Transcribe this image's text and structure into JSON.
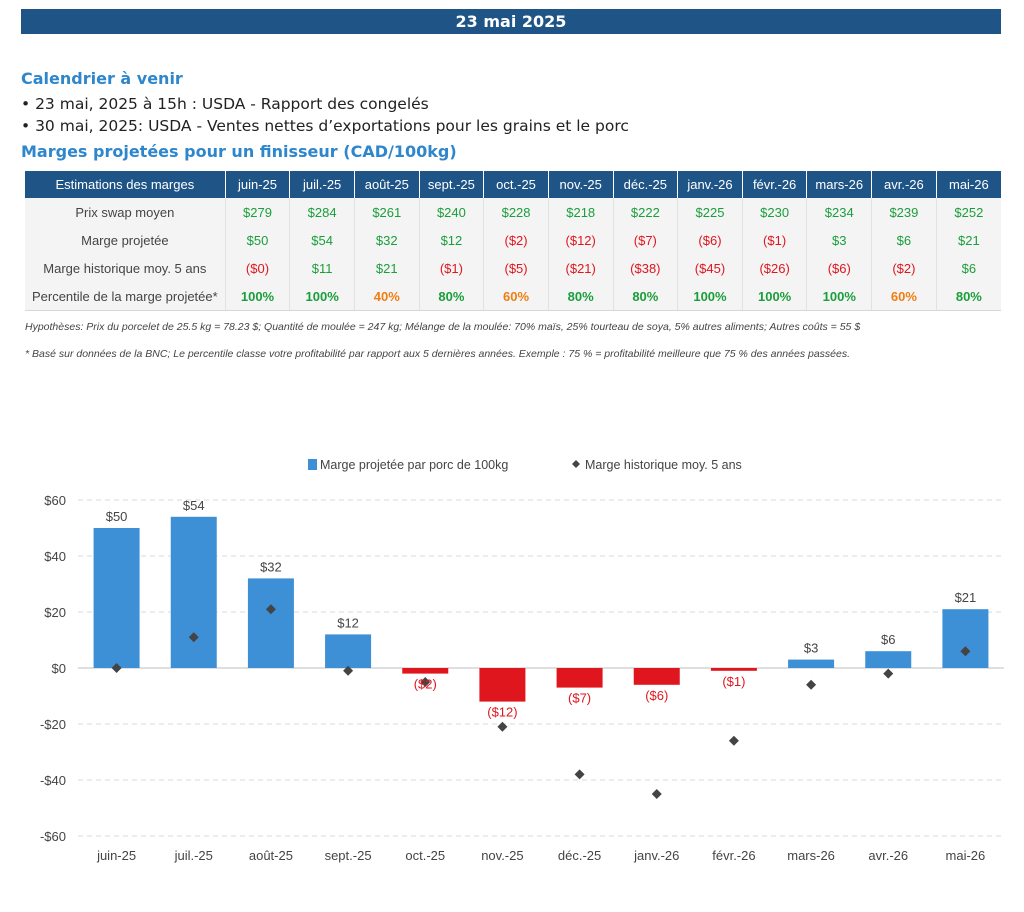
{
  "header": {
    "date": "23 mai 2025"
  },
  "calendar": {
    "title": "Calendrier à venir",
    "items": [
      "• 23 mai, 2025 à 15h : USDA - Rapport des congelés",
      "• 30 mai, 2025: USDA - Ventes nettes d’exportations pour les grains et le porc"
    ]
  },
  "margins_section": {
    "title": "Marges projetées pour un finisseur (CAD/100kg)"
  },
  "table": {
    "corner": "Estimations des marges",
    "months": [
      "juin-25",
      "juil.-25",
      "août-25",
      "sept.-25",
      "oct.-25",
      "nov.-25",
      "déc.-25",
      "janv.-26",
      "févr.-26",
      "mars-26",
      "avr.-26",
      "mai-26"
    ],
    "rows": [
      {
        "label": "Prix swap moyen",
        "cells": [
          {
            "v": "$279",
            "c": "pos"
          },
          {
            "v": "$284",
            "c": "pos"
          },
          {
            "v": "$261",
            "c": "pos"
          },
          {
            "v": "$240",
            "c": "pos"
          },
          {
            "v": "$228",
            "c": "pos"
          },
          {
            "v": "$218",
            "c": "pos"
          },
          {
            "v": "$222",
            "c": "pos"
          },
          {
            "v": "$225",
            "c": "pos"
          },
          {
            "v": "$230",
            "c": "pos"
          },
          {
            "v": "$234",
            "c": "pos"
          },
          {
            "v": "$239",
            "c": "pos"
          },
          {
            "v": "$252",
            "c": "pos"
          }
        ]
      },
      {
        "label": "Marge projetée",
        "cells": [
          {
            "v": "$50",
            "c": "pos"
          },
          {
            "v": "$54",
            "c": "pos"
          },
          {
            "v": "$32",
            "c": "pos"
          },
          {
            "v": "$12",
            "c": "pos"
          },
          {
            "v": "($2)",
            "c": "neg"
          },
          {
            "v": "($12)",
            "c": "neg"
          },
          {
            "v": "($7)",
            "c": "neg"
          },
          {
            "v": "($6)",
            "c": "neg"
          },
          {
            "v": "($1)",
            "c": "neg"
          },
          {
            "v": "$3",
            "c": "pos"
          },
          {
            "v": "$6",
            "c": "pos"
          },
          {
            "v": "$21",
            "c": "pos"
          }
        ]
      },
      {
        "label": "Marge historique moy. 5 ans",
        "cells": [
          {
            "v": "($0)",
            "c": "neg"
          },
          {
            "v": "$11",
            "c": "pos"
          },
          {
            "v": "$21",
            "c": "pos"
          },
          {
            "v": "($1)",
            "c": "neg"
          },
          {
            "v": "($5)",
            "c": "neg"
          },
          {
            "v": "($21)",
            "c": "neg"
          },
          {
            "v": "($38)",
            "c": "neg"
          },
          {
            "v": "($45)",
            "c": "neg"
          },
          {
            "v": "($26)",
            "c": "neg"
          },
          {
            "v": "($6)",
            "c": "neg"
          },
          {
            "v": "($2)",
            "c": "neg"
          },
          {
            "v": "$6",
            "c": "pos"
          }
        ]
      },
      {
        "label": "Percentile de la marge projetée*",
        "cells": [
          {
            "v": "100%",
            "c": "pct-green"
          },
          {
            "v": "100%",
            "c": "pct-green"
          },
          {
            "v": "40%",
            "c": "pct-orange"
          },
          {
            "v": "80%",
            "c": "pct-green"
          },
          {
            "v": "60%",
            "c": "pct-orange"
          },
          {
            "v": "80%",
            "c": "pct-green"
          },
          {
            "v": "80%",
            "c": "pct-green"
          },
          {
            "v": "100%",
            "c": "pct-green"
          },
          {
            "v": "100%",
            "c": "pct-green"
          },
          {
            "v": "100%",
            "c": "pct-green"
          },
          {
            "v": "60%",
            "c": "pct-orange"
          },
          {
            "v": "80%",
            "c": "pct-green"
          }
        ]
      }
    ]
  },
  "notes": {
    "hypotheses": "Hypothèses: Prix du porcelet de 25.5 kg = 78.23 $; Quantité de moulée = 247 kg; Mélange de la moulée: 70% maïs, 25% tourteau de soya, 5% autres aliments; Autres coûts = 55 $",
    "footnote": "* Basé sur données de la BNC; Le percentile classe votre profitabilité par rapport aux 5 dernières années. Exemple : 75 % = profitabilité meilleure que 75 % des années passées."
  },
  "colors": {
    "header_bg": "#1f5487",
    "title_blue": "#2e86cc",
    "bar_positive": "#3d8fd6",
    "bar_negative": "#e0161e",
    "marker": "#444444"
  },
  "chart_data": {
    "type": "bar",
    "categories": [
      "juin-25",
      "juil.-25",
      "août-25",
      "sept.-25",
      "oct.-25",
      "nov.-25",
      "déc.-25",
      "janv.-26",
      "févr.-26",
      "mars-26",
      "avr.-26",
      "mai-26"
    ],
    "series": [
      {
        "name": "Marge projetée par porc de 100kg",
        "kind": "bar",
        "values": [
          50,
          54,
          32,
          12,
          -2,
          -12,
          -7,
          -6,
          -1,
          3,
          6,
          21
        ],
        "labels": [
          "$50",
          "$54",
          "$32",
          "$12",
          "($2)",
          "($12)",
          "($7)",
          "($6)",
          "($1)",
          "$3",
          "$6",
          "$21"
        ]
      },
      {
        "name": "Marge historique moy. 5 ans",
        "kind": "marker",
        "values": [
          0,
          11,
          21,
          -1,
          -5,
          -21,
          -38,
          -45,
          -26,
          -6,
          -2,
          6
        ]
      }
    ],
    "ylim": [
      -60,
      60
    ],
    "yticks": [
      60,
      40,
      20,
      0,
      -20,
      -40,
      -60
    ],
    "ytick_labels": [
      "$60",
      "$40",
      "$20",
      "$0",
      "-$20",
      "-$40",
      "-$60"
    ],
    "grid": true,
    "legend_position": "top"
  }
}
